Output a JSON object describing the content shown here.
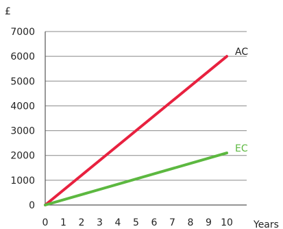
{
  "chart_data": {
    "type": "line",
    "ylabel": "£",
    "xlabel": "Years",
    "x": [
      0,
      1,
      2,
      3,
      4,
      5,
      6,
      7,
      8,
      9,
      10
    ],
    "x_ticks": [
      "0",
      "1",
      "2",
      "3",
      "4",
      "5",
      "6",
      "7",
      "8",
      "9",
      "10"
    ],
    "xlim": [
      0,
      10
    ],
    "ylim": [
      0,
      7000
    ],
    "y_ticks": [
      "0",
      "1000",
      "2000",
      "3000",
      "4000",
      "5000",
      "6000",
      "7000"
    ],
    "grid": true,
    "series": [
      {
        "name": "AC",
        "color": "#e8213f",
        "x": [
          0,
          10
        ],
        "values": [
          0,
          6000
        ]
      },
      {
        "name": "EC",
        "color": "#5cb840",
        "x": [
          0,
          10
        ],
        "values": [
          0,
          2100
        ]
      }
    ]
  },
  "colors": {
    "grid": "#888888",
    "axis": "#555555",
    "text": "#222222"
  }
}
